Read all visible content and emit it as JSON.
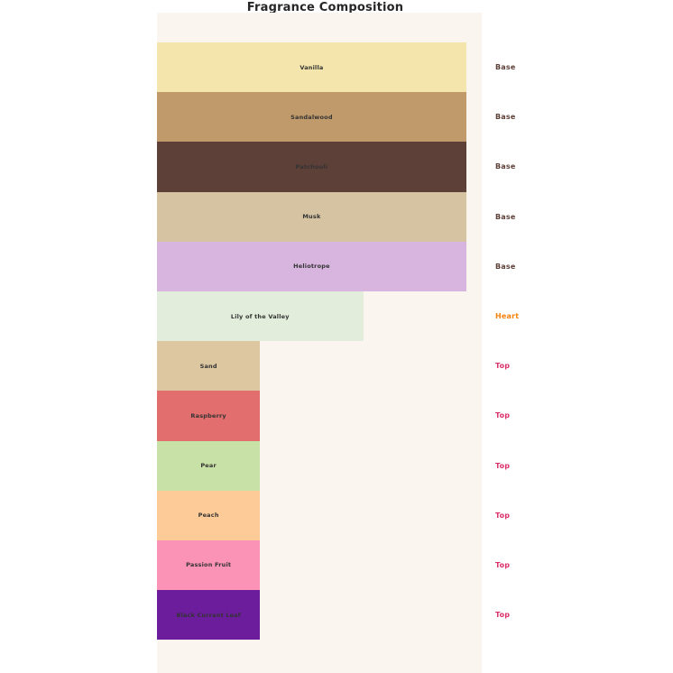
{
  "page": {
    "background": "#ffffff"
  },
  "chart_data": {
    "type": "bar",
    "orientation": "horizontal",
    "title": "Fragrance Composition",
    "xlabel": "",
    "ylabel": "",
    "xlim": [
      0,
      3.15
    ],
    "grid": false,
    "legend_position": "none",
    "plot_background": "#faf6ef",
    "categories": [
      "Vanilla",
      "Sandalwood",
      "Patchouli",
      "Musk",
      "Heliotrope",
      "Lily of the Valley",
      "Sand",
      "Raspberry",
      "Pear",
      "Peach",
      "Passion Fruit",
      "Black Currant Leaf"
    ],
    "values": [
      3,
      3,
      3,
      3,
      3,
      2,
      1,
      1,
      1,
      1,
      1,
      1
    ],
    "note_types": [
      "Base",
      "Base",
      "Base",
      "Base",
      "Base",
      "Heart",
      "Top",
      "Top",
      "Top",
      "Top",
      "Top",
      "Top"
    ],
    "bar_colors": [
      "#f3e5ab",
      "#c19a6b",
      "#5d4037",
      "#d5c3a1",
      "#d7b5de",
      "#e2eedb",
      "#dcc7a1",
      "#e26e6e",
      "#c8e1a6",
      "#fdcb97",
      "#fa93b5",
      "#6b1d9c"
    ],
    "bar_label_color": "#333333",
    "title_color": "#262626",
    "note_type_colors": {
      "Base": "#5d4037",
      "Heart": "#f5820b",
      "Top": "#db3069"
    }
  }
}
